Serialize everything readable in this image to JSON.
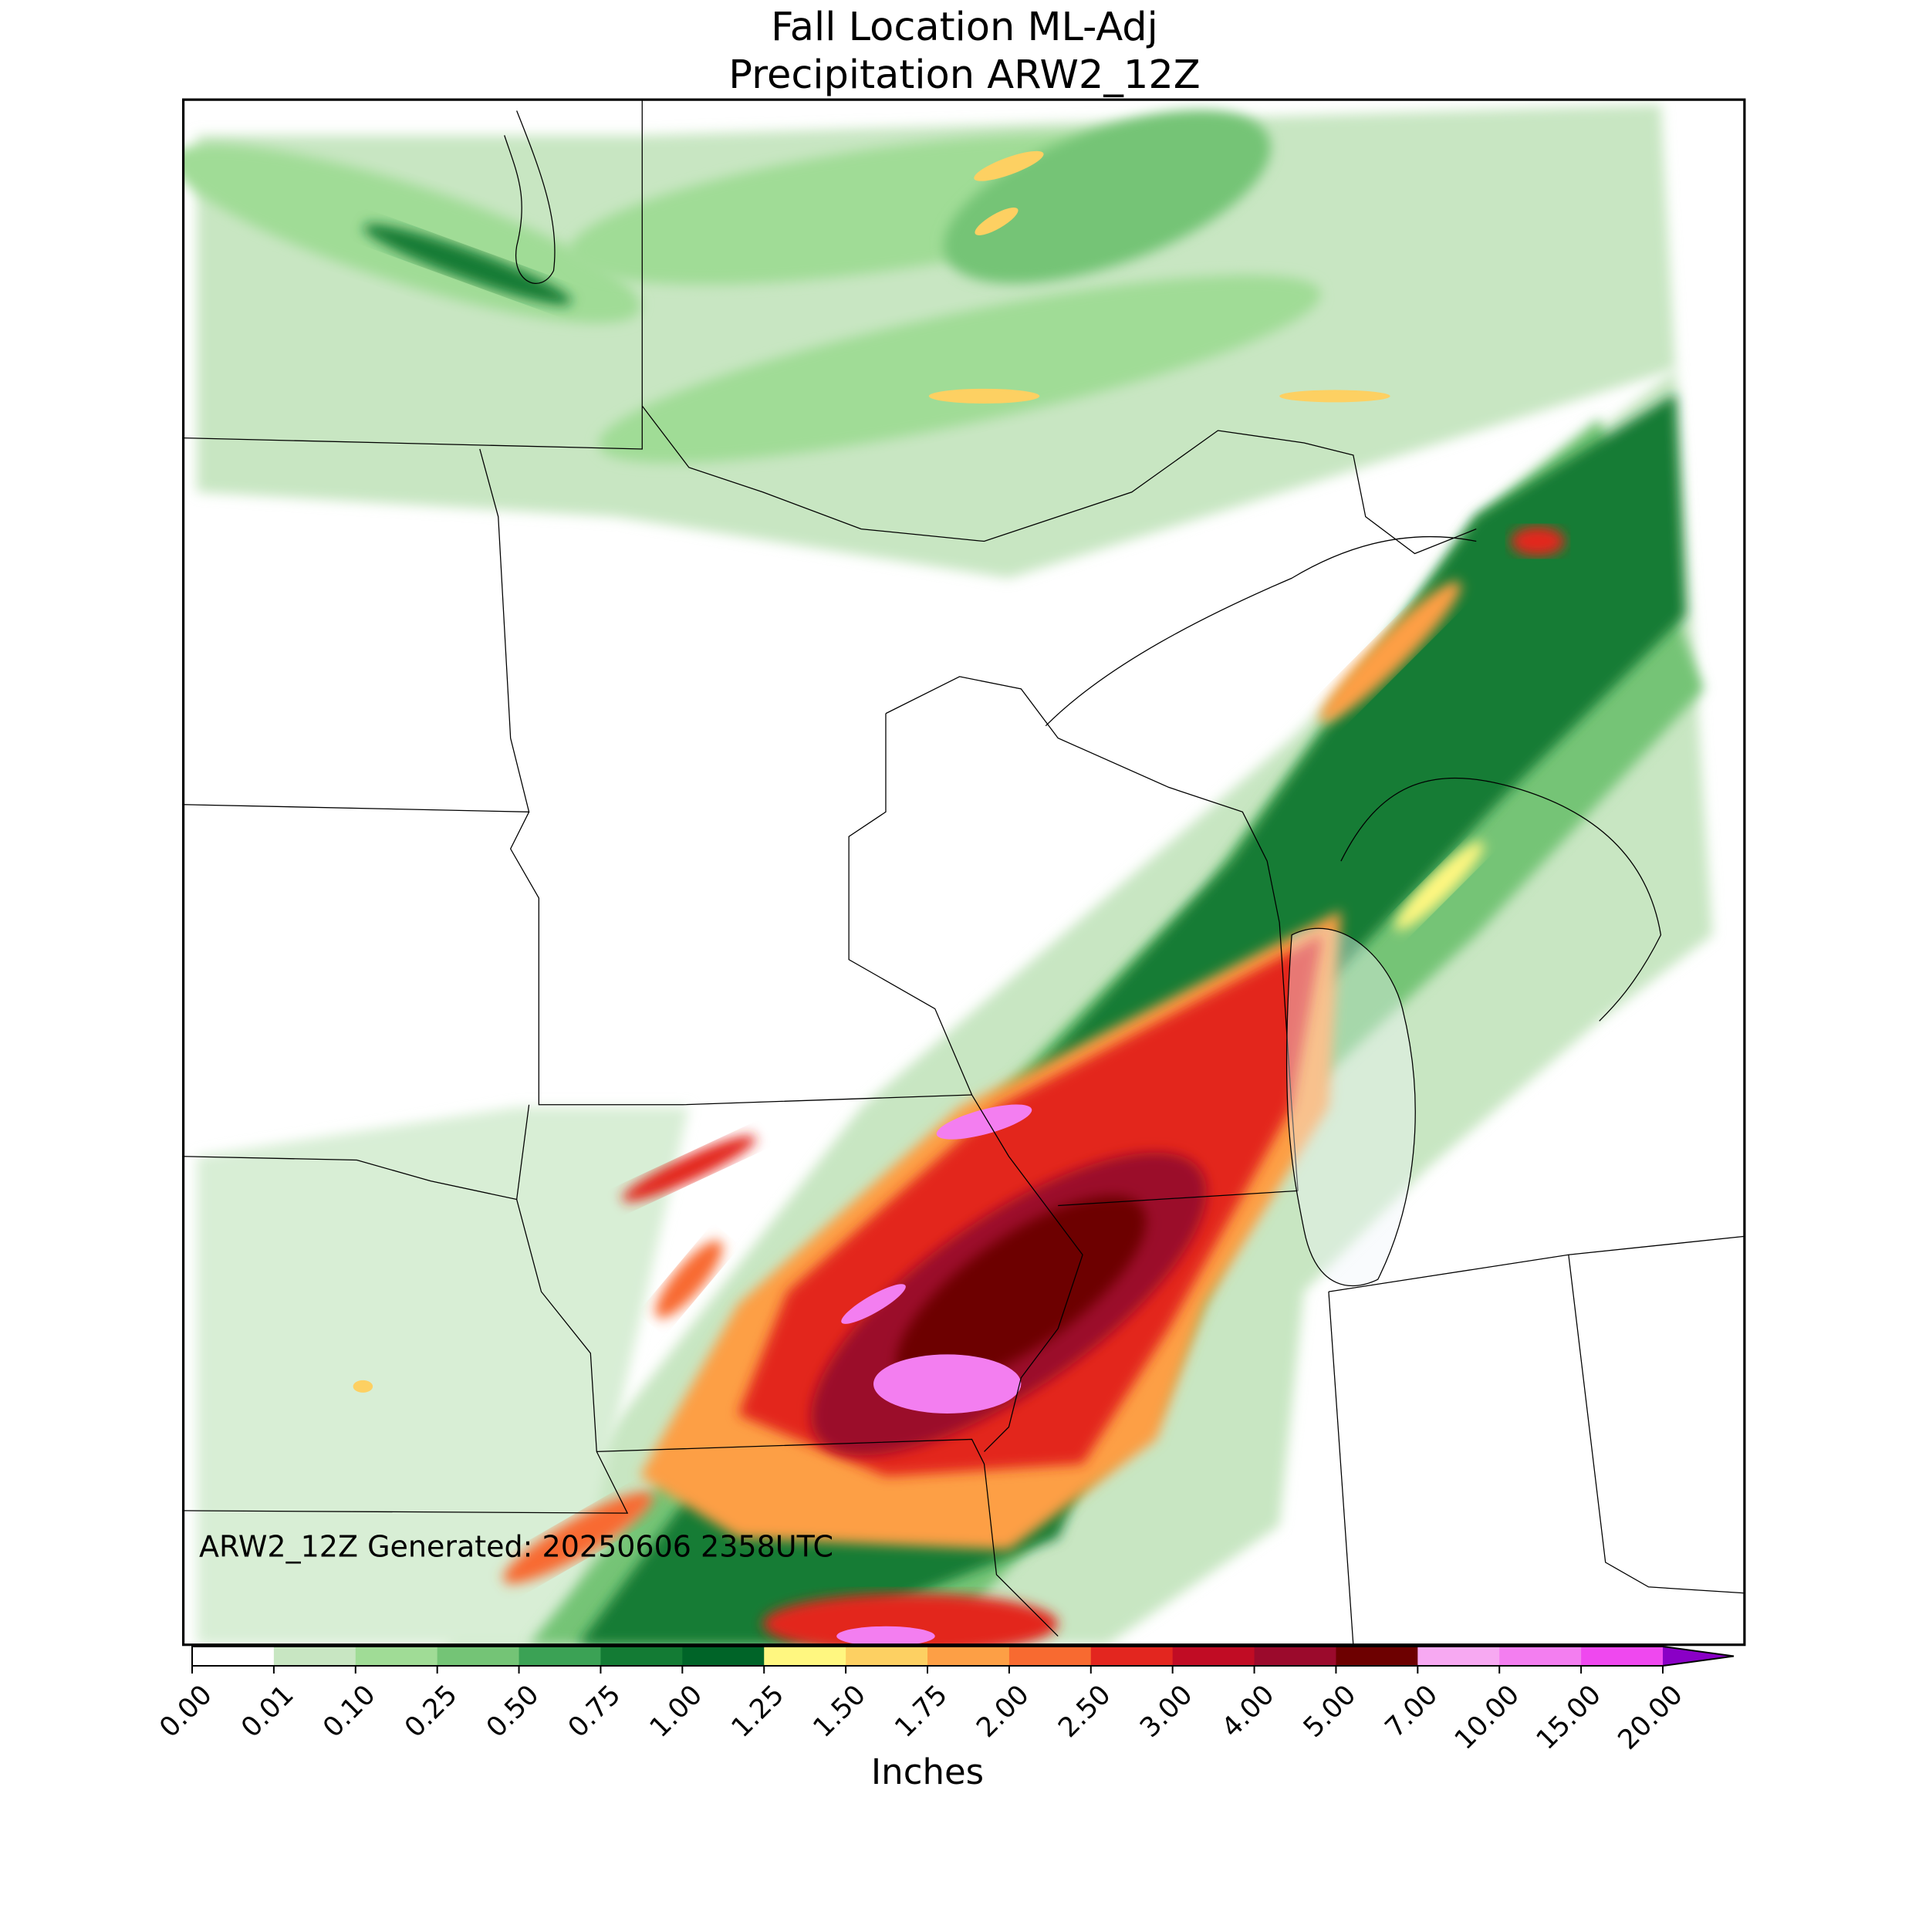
{
  "title": [
    "Fall Location ML-Adj",
    "Precipitation ARW2_12Z"
  ],
  "annotation": "ARW2_12Z Generated: 20250606 2358UTC",
  "colorbar": {
    "label": "Inches",
    "ticks": [
      {
        "value": 0,
        "label": "0.00"
      },
      {
        "value": 0.01,
        "label": "0.01"
      },
      {
        "value": 0.1,
        "label": "0.10"
      },
      {
        "value": 0.25,
        "label": "0.25"
      },
      {
        "value": 0.5,
        "label": "0.50"
      },
      {
        "value": 0.75,
        "label": "0.75"
      },
      {
        "value": 1,
        "label": "1.00"
      },
      {
        "value": 1.25,
        "label": "1.25"
      },
      {
        "value": 1.5,
        "label": "1.50"
      },
      {
        "value": 1.75,
        "label": "1.75"
      },
      {
        "value": 2,
        "label": "2.00"
      },
      {
        "value": 2.5,
        "label": "2.50"
      },
      {
        "value": 3,
        "label": "3.00"
      },
      {
        "value": 4,
        "label": "4.00"
      },
      {
        "value": 5,
        "label": "5.00"
      },
      {
        "value": 7,
        "label": "7.00"
      },
      {
        "value": 10,
        "label": "10.00"
      },
      {
        "value": 15,
        "label": "15.00"
      },
      {
        "value": 20,
        "label": "20.00"
      }
    ],
    "colors": [
      "#ffffff",
      "#c8e6c2",
      "#a0dc96",
      "#74c476",
      "#3ba255",
      "#137b34",
      "#006428",
      "#fff780",
      "#fdd062",
      "#fd9f45",
      "#f86a30",
      "#e3261f",
      "#c10c24",
      "#9b0a2c",
      "#6d0000",
      "#f7a9f2",
      "#f37ef0",
      "#ef48ef",
      "#e013f2",
      "#b400e0"
    ],
    "extend_color": "#8a00c6"
  }
}
